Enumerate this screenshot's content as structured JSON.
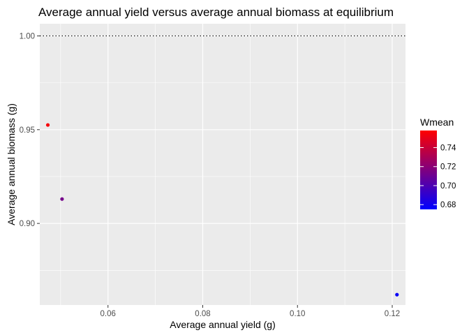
{
  "chart_data": {
    "type": "scatter",
    "title": "Average annual yield versus average annual biomass at equilibrium",
    "xlabel": "Average annual yield (g)",
    "ylabel": "Average annual biomass (g)",
    "xlim": [
      0.0456,
      0.1228
    ],
    "ylim": [
      0.8565,
      1.0065
    ],
    "x_ticks": [
      0.06,
      0.08,
      0.1,
      0.12
    ],
    "x_tick_labels": [
      "0.06",
      "0.08",
      "0.10",
      "0.12"
    ],
    "y_ticks": [
      0.9,
      0.95,
      1.0
    ],
    "y_tick_labels": [
      "0.90",
      "0.95",
      "1.00"
    ],
    "grid": true,
    "reference_line": {
      "y": 1.0,
      "style": "dotted",
      "color": "#000000"
    },
    "points": [
      {
        "x": 0.0473,
        "y": 0.9525,
        "Wmean": 0.755
      },
      {
        "x": 0.0503,
        "y": 0.913,
        "Wmean": 0.713
      },
      {
        "x": 0.121,
        "y": 0.862,
        "Wmean": 0.678
      }
    ],
    "legend": {
      "title": "Wmean",
      "placement": "right",
      "type": "colorbar",
      "range": [
        0.675,
        0.758
      ],
      "ticks": [
        0.68,
        0.7,
        0.72,
        0.74
      ],
      "tick_labels": [
        "0.68",
        "0.70",
        "0.72",
        "0.74"
      ],
      "low_color": "#0000FF",
      "high_color": "#FF0000"
    },
    "panel_background": "#EBEBEB",
    "grid_color": "#FFFFFF"
  }
}
